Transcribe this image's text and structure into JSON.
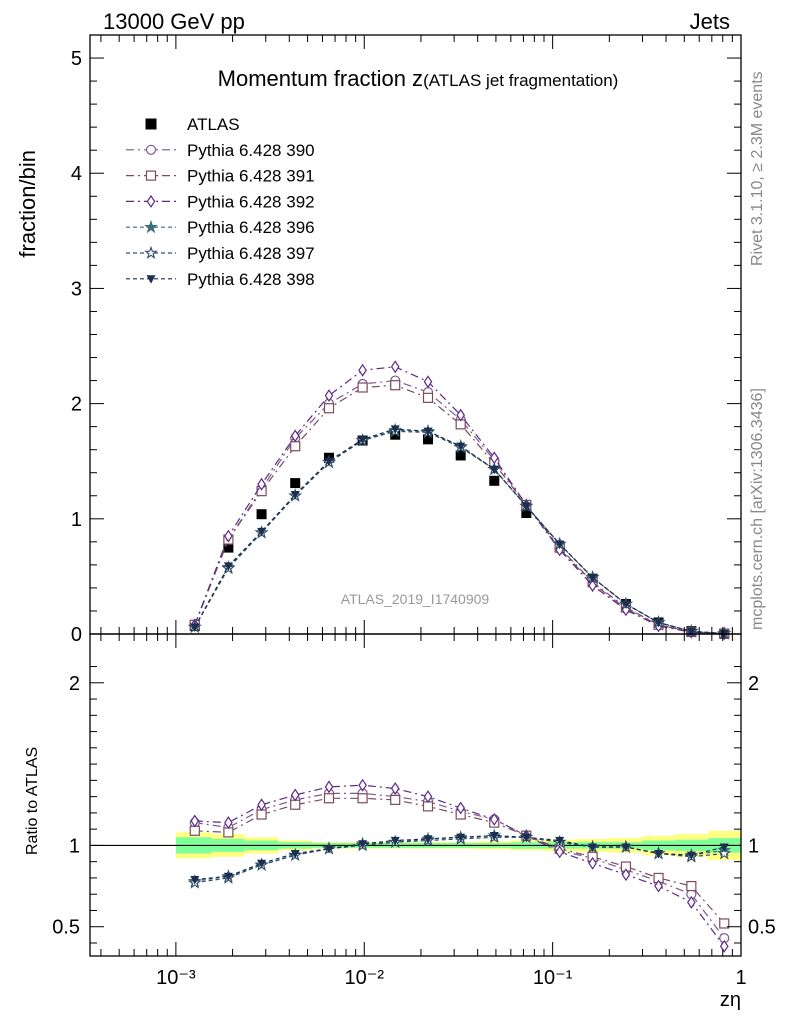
{
  "header": {
    "left": "13000 GeV pp",
    "right": "Jets"
  },
  "side_labels": {
    "rivet": "Rivet 3.1.10, ≥ 2.3M events",
    "mcplots": "mcplots.cern.ch [arXiv:1306.3436]"
  },
  "colors": {
    "p390": "#7a5a8c",
    "p391": "#7d4a5e",
    "p392": "#5c2a8a",
    "p396": "#3d6f7a",
    "p397": "#2f4f6a",
    "p398": "#1c2f4e",
    "band_inner": "#7fff9a",
    "band_outer": "#ffff80"
  },
  "chart_data": {
    "type": "line",
    "title": "Momentum fraction z",
    "title_suffix": "(ATLAS jet fragmentation)",
    "analysis_label": "ATLAS_2019_I1740909",
    "xlabel": "zη",
    "xscale": "log",
    "xlim": [
      0.00035,
      1.0
    ],
    "x_tick_labels": [
      "10⁻³",
      "10⁻²",
      "10⁻¹",
      "1"
    ],
    "main": {
      "ylabel": "fraction/bin",
      "ylim": [
        0,
        5.2
      ],
      "y_ticks": [
        1,
        2,
        3,
        4,
        5
      ],
      "y_tick_labels": [
        "1",
        "2",
        "3",
        "4",
        "5"
      ],
      "y_zero_label": "0"
    },
    "ratio": {
      "ylabel": "Ratio to ATLAS",
      "ylim": [
        0.32,
        2.3
      ],
      "y_ticks": [
        0.5,
        1,
        2
      ],
      "y_tick_labels": [
        "0.5",
        "1",
        "2"
      ]
    },
    "x": [
      0.00126,
      0.0019,
      0.00285,
      0.0043,
      0.0065,
      0.0098,
      0.0146,
      0.0218,
      0.0325,
      0.049,
      0.0725,
      0.109,
      0.163,
      0.245,
      0.365,
      0.545,
      0.815
    ],
    "series": [
      {
        "name": "ATLAS",
        "marker": "filled-square",
        "dash": "none",
        "color_key": "data",
        "values": [
          0.07,
          0.75,
          1.04,
          1.31,
          1.53,
          1.68,
          1.73,
          1.69,
          1.55,
          1.33,
          1.05,
          0.76,
          0.48,
          0.26,
          0.1,
          0.025,
          0.004
        ],
        "ratio": []
      },
      {
        "name": "Pythia 6.428 390",
        "marker": "open-circle",
        "dash": "8 4 2 4",
        "color_key": "p390",
        "values": [
          0.08,
          0.82,
          1.26,
          1.7,
          2.0,
          2.17,
          2.2,
          2.1,
          1.86,
          1.51,
          1.12,
          0.74,
          0.44,
          0.22,
          0.08,
          0.017,
          0.002
        ],
        "ratio": [
          1.14,
          1.11,
          1.22,
          1.28,
          1.32,
          1.32,
          1.3,
          1.27,
          1.21,
          1.16,
          1.06,
          0.97,
          0.92,
          0.85,
          0.78,
          0.7,
          0.43
        ]
      },
      {
        "name": "Pythia 6.428 391",
        "marker": "open-square",
        "dash": "8 4 2 4",
        "color_key": "p391",
        "values": [
          0.08,
          0.82,
          1.24,
          1.63,
          1.96,
          2.14,
          2.16,
          2.05,
          1.82,
          1.48,
          1.12,
          0.75,
          0.45,
          0.23,
          0.08,
          0.018,
          0.002
        ],
        "ratio": [
          1.09,
          1.08,
          1.19,
          1.25,
          1.29,
          1.29,
          1.28,
          1.24,
          1.19,
          1.14,
          1.06,
          0.98,
          0.93,
          0.87,
          0.8,
          0.75,
          0.52
        ]
      },
      {
        "name": "Pythia 6.428 392",
        "marker": "open-diamond",
        "dash": "8 4 2 4",
        "color_key": "p392",
        "values": [
          0.08,
          0.85,
          1.3,
          1.72,
          2.07,
          2.29,
          2.32,
          2.19,
          1.9,
          1.53,
          1.12,
          0.73,
          0.42,
          0.21,
          0.07,
          0.016,
          0.002
        ],
        "ratio": [
          1.15,
          1.14,
          1.25,
          1.31,
          1.36,
          1.37,
          1.35,
          1.3,
          1.23,
          1.16,
          1.06,
          0.96,
          0.89,
          0.82,
          0.75,
          0.65,
          0.38
        ]
      },
      {
        "name": "Pythia 6.428 396",
        "marker": "filled-star",
        "dash": "4 3",
        "color_key": "p396",
        "values": [
          0.06,
          0.58,
          0.88,
          1.2,
          1.49,
          1.68,
          1.77,
          1.76,
          1.63,
          1.43,
          1.11,
          0.78,
          0.49,
          0.26,
          0.1,
          0.023,
          0.004
        ],
        "ratio": [
          0.78,
          0.81,
          0.88,
          0.94,
          0.98,
          1.01,
          1.02,
          1.04,
          1.05,
          1.06,
          1.05,
          1.02,
          0.99,
          0.99,
          0.95,
          0.94,
          0.97
        ]
      },
      {
        "name": "Pythia 6.428 397",
        "marker": "open-star",
        "dash": "4 3",
        "color_key": "p397",
        "values": [
          0.06,
          0.57,
          0.88,
          1.2,
          1.49,
          1.68,
          1.76,
          1.75,
          1.62,
          1.43,
          1.11,
          0.78,
          0.49,
          0.26,
          0.1,
          0.023,
          0.004
        ],
        "ratio": [
          0.77,
          0.8,
          0.88,
          0.94,
          0.98,
          1.0,
          1.02,
          1.03,
          1.04,
          1.05,
          1.05,
          1.02,
          0.99,
          0.99,
          0.95,
          0.93,
          0.95
        ]
      },
      {
        "name": "Pythia 6.428 398",
        "marker": "filled-triangle-down",
        "dash": "4 3",
        "color_key": "p398",
        "values": [
          0.06,
          0.59,
          0.89,
          1.21,
          1.5,
          1.69,
          1.78,
          1.76,
          1.63,
          1.43,
          1.11,
          0.78,
          0.49,
          0.26,
          0.1,
          0.023,
          0.004
        ],
        "ratio": [
          0.79,
          0.81,
          0.89,
          0.95,
          0.98,
          1.01,
          1.03,
          1.04,
          1.05,
          1.06,
          1.05,
          1.03,
          0.99,
          0.99,
          0.95,
          0.94,
          0.99
        ]
      }
    ],
    "ratio_band": {
      "x_edges": [
        0.001,
        0.00155,
        0.0023,
        0.0035,
        0.0053,
        0.008,
        0.012,
        0.018,
        0.027,
        0.04,
        0.06,
        0.09,
        0.135,
        0.2,
        0.3,
        0.45,
        0.67,
        1.0
      ],
      "inner": [
        0.05,
        0.04,
        0.03,
        0.02,
        0.015,
        0.015,
        0.015,
        0.015,
        0.015,
        0.015,
        0.02,
        0.02,
        0.02,
        0.02,
        0.03,
        0.035,
        0.045
      ],
      "outer": [
        0.08,
        0.07,
        0.05,
        0.03,
        0.02,
        0.02,
        0.02,
        0.02,
        0.02,
        0.025,
        0.03,
        0.035,
        0.04,
        0.045,
        0.06,
        0.07,
        0.09
      ]
    }
  }
}
